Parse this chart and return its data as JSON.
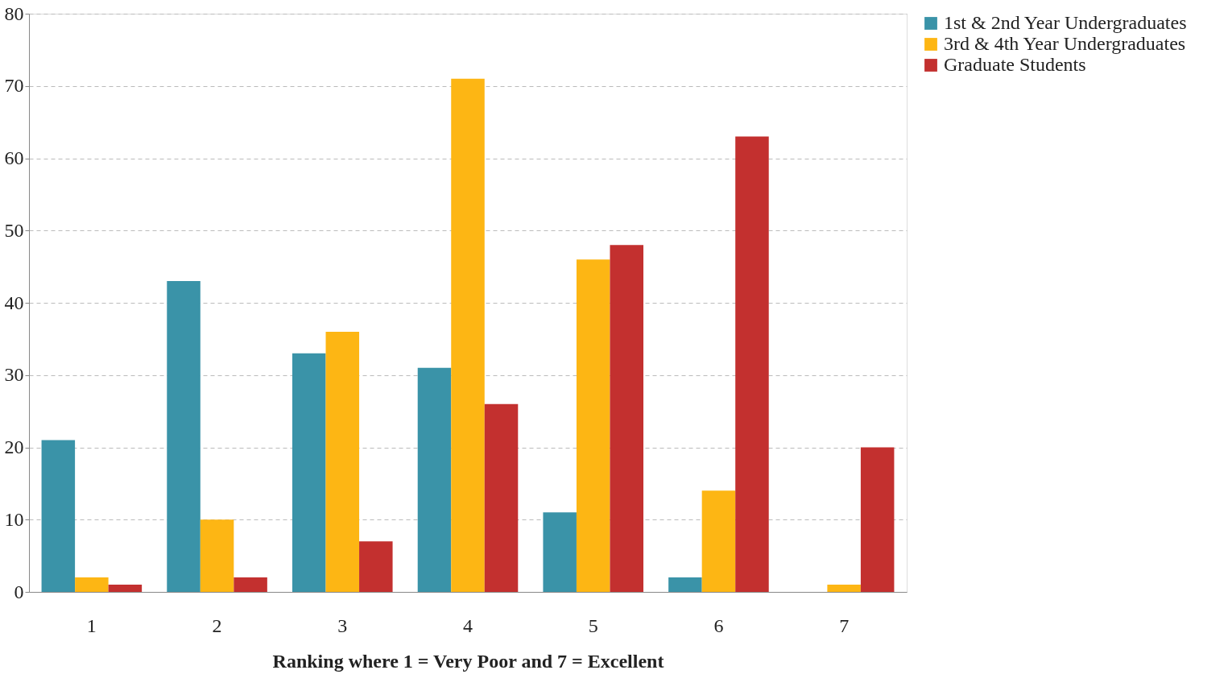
{
  "chart_data": {
    "type": "bar",
    "xlabel": "Ranking where 1 = Very Poor and 7 = Excellent",
    "categories": [
      "1",
      "2",
      "3",
      "4",
      "5",
      "6",
      "7"
    ],
    "series": [
      {
        "name": "1st & 2nd Year Undergraduates",
        "color": "#3a93a8",
        "values": [
          21,
          43,
          33,
          31,
          11,
          2,
          0
        ]
      },
      {
        "name": "3rd & 4th Year Undergraduates",
        "color": "#fdb614",
        "values": [
          2,
          10,
          36,
          71,
          46,
          14,
          1
        ]
      },
      {
        "name": "Graduate Students",
        "color": "#c3302f",
        "values": [
          1,
          2,
          7,
          26,
          48,
          63,
          20
        ]
      }
    ],
    "ylim": [
      0,
      80
    ],
    "yticks": [
      0,
      10,
      20,
      30,
      40,
      50,
      60,
      70,
      80
    ],
    "grid": "y",
    "legend": "right"
  }
}
